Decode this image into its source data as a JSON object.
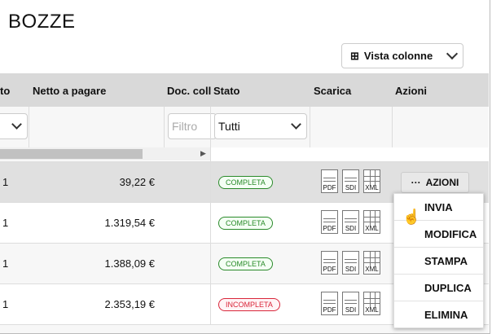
{
  "title": "BOZZE",
  "vista_colonne": "Vista colonne",
  "headers": {
    "c1": "to",
    "netto": "Netto a pagare",
    "doc": "Doc. coll",
    "stato": "Stato",
    "scarica": "Scarica",
    "azioni": "Azioni"
  },
  "filters": {
    "doc_placeholder": "Filtro",
    "stato_value": "Tutti"
  },
  "rows": [
    {
      "c1": "1",
      "amount": "39,22 €",
      "status": "COMPLETA",
      "ok": true
    },
    {
      "c1": "1",
      "amount": "1.319,54 €",
      "status": "COMPLETA",
      "ok": true
    },
    {
      "c1": "1",
      "amount": "1.388,09 €",
      "status": "COMPLETA",
      "ok": true
    },
    {
      "c1": "1",
      "amount": "2.353,19 €",
      "status": "INCOMPLETA",
      "ok": false
    }
  ],
  "doc_labels": [
    "PDF",
    "SDI",
    "XML"
  ],
  "azioni_button": "AZIONI",
  "menu": [
    "INVIA",
    "MODIFICA",
    "STAMPA",
    "DUPLICA",
    "ELIMINA"
  ],
  "colors": {
    "ok": "#2a8a2a",
    "bad": "#d9263a",
    "header": "#d9d9d9"
  }
}
